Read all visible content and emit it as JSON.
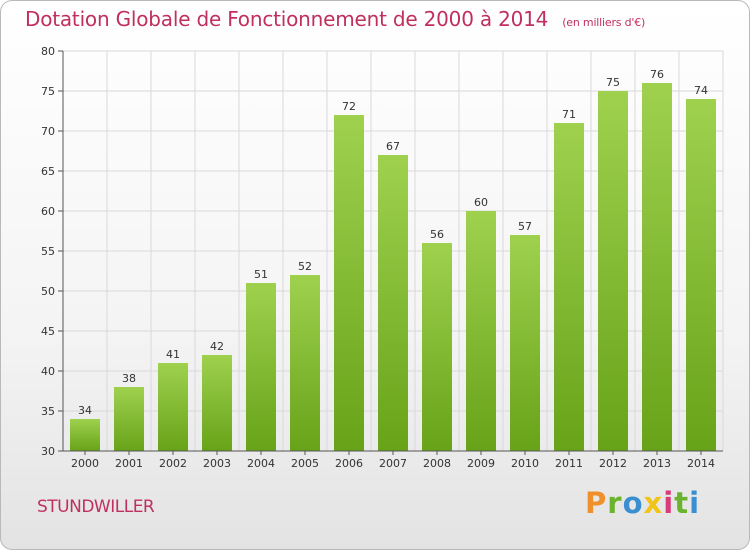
{
  "header": {
    "title": "Dotation Globale de Fonctionnement de 2000 à 2014",
    "subtitle": "(en milliers d'€)"
  },
  "footer": {
    "commune": "STUNDWILLER",
    "logo_text": "Proxiti"
  },
  "colors": {
    "title": "#c0305e",
    "bar_light": "#9fd14f",
    "bar_dark": "#67a319",
    "grid": "#d9d9d9",
    "axis": "#555555",
    "logo_letters": [
      "#f0902a",
      "#6ab42d",
      "#3a8fd0",
      "#f0c419",
      "#d83a7a",
      "#6ab42d",
      "#3a8fd0"
    ]
  },
  "chart_data": {
    "type": "bar",
    "title": "Dotation Globale de Fonctionnement de 2000 à 2014",
    "subtitle": "(en milliers d'€)",
    "xlabel": "",
    "ylabel": "",
    "categories": [
      "2000",
      "2001",
      "2002",
      "2003",
      "2004",
      "2005",
      "2006",
      "2007",
      "2008",
      "2009",
      "2010",
      "2011",
      "2012",
      "2013",
      "2014"
    ],
    "values": [
      34,
      38,
      41,
      42,
      51,
      52,
      72,
      67,
      56,
      60,
      57,
      71,
      75,
      76,
      74
    ],
    "ylim": [
      30,
      80
    ],
    "yticks": [
      30,
      35,
      40,
      45,
      50,
      55,
      60,
      65,
      70,
      75,
      80
    ],
    "grid": true,
    "data_labels": true
  }
}
